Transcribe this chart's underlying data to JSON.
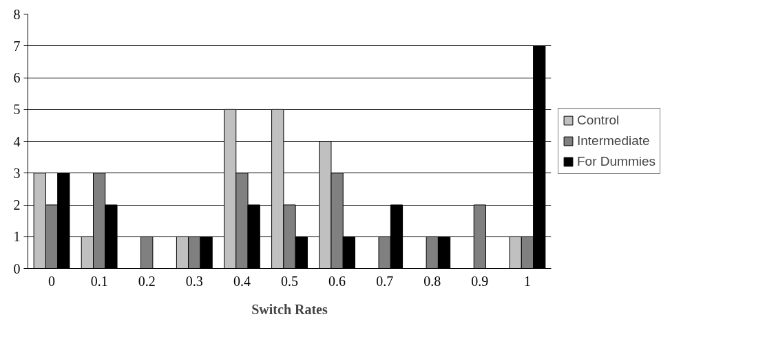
{
  "chart_data": {
    "type": "bar",
    "xlabel": "Switch Rates",
    "categories": [
      "0",
      "0.1",
      "0.2",
      "0.3",
      "0.4",
      "0.5",
      "0.6",
      "0.7",
      "0.8",
      "0.9",
      "1"
    ],
    "series": [
      {
        "name": "Control",
        "color": "#c0c0c0",
        "values": [
          3,
          1,
          0,
          1,
          5,
          5,
          4,
          0,
          0,
          0,
          1
        ]
      },
      {
        "name": "Intermediate",
        "color": "#808080",
        "values": [
          2,
          3,
          1,
          1,
          3,
          2,
          3,
          1,
          1,
          2,
          1
        ]
      },
      {
        "name": "For Dummies",
        "color": "#000000",
        "values": [
          3,
          2,
          0,
          1,
          2,
          1,
          1,
          2,
          1,
          0,
          7
        ]
      }
    ],
    "ylim": [
      0,
      8
    ],
    "yticks": [
      0,
      1,
      2,
      3,
      4,
      5,
      6,
      7,
      8
    ],
    "grid": "y",
    "legend": "right"
  }
}
